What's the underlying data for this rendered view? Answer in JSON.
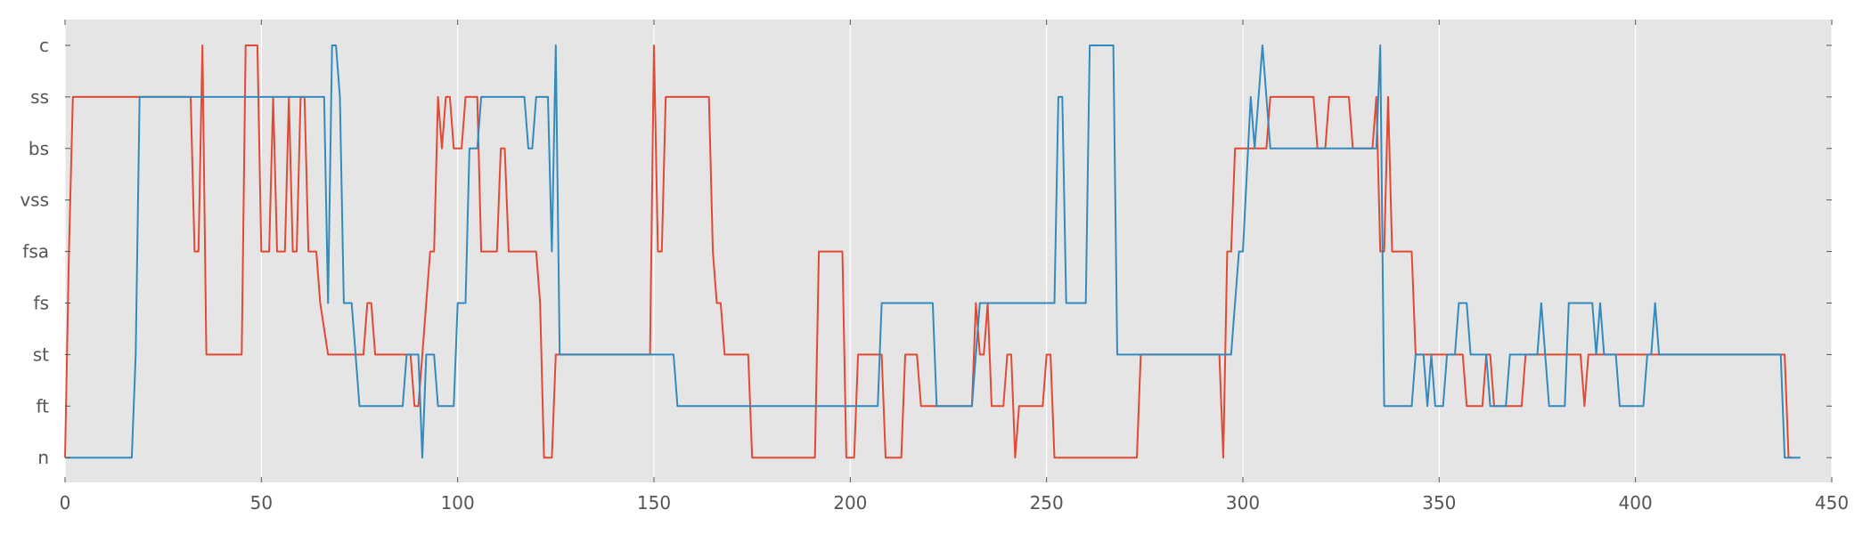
{
  "chart_data": {
    "type": "line",
    "title": "",
    "xlabel": "",
    "ylabel": "",
    "xlim": [
      0,
      450
    ],
    "x_ticks": [
      0,
      50,
      100,
      150,
      200,
      250,
      300,
      350,
      400,
      450
    ],
    "x_tick_labels": [
      "0",
      "50",
      "100",
      "150",
      "200",
      "250",
      "300",
      "350",
      "400",
      "450"
    ],
    "y_categories": [
      "n",
      "ft",
      "st",
      "fs",
      "fsa",
      "vss",
      "bs",
      "ss",
      "c"
    ],
    "grid": true,
    "legend": "none",
    "colors": {
      "background": "#e5e5e5",
      "grid": "#ffffff",
      "series_red": "#e24a33",
      "series_blue": "#348abd",
      "tick_text": "#555555"
    },
    "series": [
      {
        "color": "#e24a33",
        "points": [
          [
            0,
            0
          ],
          [
            1,
            4
          ],
          [
            2,
            7
          ],
          [
            32,
            7
          ],
          [
            33,
            4
          ],
          [
            34,
            4
          ],
          [
            35,
            8
          ],
          [
            36,
            2
          ],
          [
            45,
            2
          ],
          [
            46,
            8
          ],
          [
            49,
            8
          ],
          [
            50,
            4
          ],
          [
            52,
            4
          ],
          [
            53,
            7
          ],
          [
            54,
            4
          ],
          [
            56,
            4
          ],
          [
            57,
            7
          ],
          [
            58,
            4
          ],
          [
            59,
            4
          ],
          [
            60,
            7
          ],
          [
            61,
            7
          ],
          [
            62,
            4
          ],
          [
            64,
            4
          ],
          [
            65,
            3
          ],
          [
            67,
            2
          ],
          [
            76,
            2
          ],
          [
            77,
            3
          ],
          [
            78,
            3
          ],
          [
            79,
            2
          ],
          [
            88,
            2
          ],
          [
            89,
            1
          ],
          [
            90,
            1
          ],
          [
            91,
            2
          ],
          [
            92,
            3
          ],
          [
            93,
            4
          ],
          [
            94,
            4
          ],
          [
            95,
            7
          ],
          [
            96,
            6
          ],
          [
            97,
            7
          ],
          [
            98,
            7
          ],
          [
            99,
            6
          ],
          [
            101,
            6
          ],
          [
            102,
            7
          ],
          [
            105,
            7
          ],
          [
            106,
            4
          ],
          [
            110,
            4
          ],
          [
            111,
            6
          ],
          [
            112,
            6
          ],
          [
            113,
            4
          ],
          [
            120,
            4
          ],
          [
            121,
            3
          ],
          [
            122,
            0
          ],
          [
            124,
            0
          ],
          [
            125,
            2
          ],
          [
            149,
            2
          ],
          [
            150,
            8
          ],
          [
            151,
            4
          ],
          [
            152,
            4
          ],
          [
            153,
            7
          ],
          [
            164,
            7
          ],
          [
            165,
            4
          ],
          [
            166,
            3
          ],
          [
            167,
            3
          ],
          [
            168,
            2
          ],
          [
            174,
            2
          ],
          [
            175,
            0
          ],
          [
            191,
            0
          ],
          [
            192,
            4
          ],
          [
            198,
            4
          ],
          [
            199,
            0
          ],
          [
            201,
            0
          ],
          [
            202,
            2
          ],
          [
            208,
            2
          ],
          [
            209,
            0
          ],
          [
            213,
            0
          ],
          [
            214,
            2
          ],
          [
            217,
            2
          ],
          [
            218,
            1
          ],
          [
            231,
            1
          ],
          [
            232,
            3
          ],
          [
            233,
            2
          ],
          [
            234,
            2
          ],
          [
            235,
            3
          ],
          [
            236,
            1
          ],
          [
            239,
            1
          ],
          [
            240,
            2
          ],
          [
            241,
            2
          ],
          [
            242,
            0
          ],
          [
            243,
            1
          ],
          [
            249,
            1
          ],
          [
            250,
            2
          ],
          [
            251,
            2
          ],
          [
            252,
            0
          ],
          [
            273,
            0
          ],
          [
            274,
            2
          ],
          [
            294,
            2
          ],
          [
            295,
            0
          ],
          [
            296,
            4
          ],
          [
            297,
            4
          ],
          [
            298,
            6
          ],
          [
            306,
            6
          ],
          [
            307,
            7
          ],
          [
            318,
            7
          ],
          [
            319,
            6
          ],
          [
            321,
            6
          ],
          [
            322,
            7
          ],
          [
            327,
            7
          ],
          [
            328,
            6
          ],
          [
            333,
            6
          ],
          [
            334,
            7
          ],
          [
            335,
            4
          ],
          [
            336,
            4
          ],
          [
            337,
            7
          ],
          [
            338,
            4
          ],
          [
            343,
            4
          ],
          [
            344,
            2
          ],
          [
            356,
            2
          ],
          [
            357,
            1
          ],
          [
            361,
            1
          ],
          [
            362,
            2
          ],
          [
            363,
            2
          ],
          [
            364,
            1
          ],
          [
            371,
            1
          ],
          [
            372,
            2
          ],
          [
            386,
            2
          ],
          [
            387,
            1
          ],
          [
            388,
            2
          ],
          [
            438,
            2
          ],
          [
            439,
            0
          ],
          [
            440,
            0
          ]
        ]
      },
      {
        "color": "#348abd",
        "points": [
          [
            0,
            0
          ],
          [
            17,
            0
          ],
          [
            18,
            2
          ],
          [
            19,
            7
          ],
          [
            66,
            7
          ],
          [
            67,
            3
          ],
          [
            68,
            8
          ],
          [
            69,
            8
          ],
          [
            70,
            7
          ],
          [
            71,
            3
          ],
          [
            73,
            3
          ],
          [
            75,
            1
          ],
          [
            86,
            1
          ],
          [
            87,
            2
          ],
          [
            90,
            2
          ],
          [
            91,
            0
          ],
          [
            92,
            2
          ],
          [
            94,
            2
          ],
          [
            95,
            1
          ],
          [
            99,
            1
          ],
          [
            100,
            3
          ],
          [
            102,
            3
          ],
          [
            103,
            6
          ],
          [
            105,
            6
          ],
          [
            106,
            7
          ],
          [
            117,
            7
          ],
          [
            118,
            6
          ],
          [
            119,
            6
          ],
          [
            120,
            7
          ],
          [
            123,
            7
          ],
          [
            124,
            4
          ],
          [
            125,
            8
          ],
          [
            126,
            2
          ],
          [
            155,
            2
          ],
          [
            156,
            1
          ],
          [
            207,
            1
          ],
          [
            208,
            3
          ],
          [
            221,
            3
          ],
          [
            222,
            1
          ],
          [
            231,
            1
          ],
          [
            232,
            2
          ],
          [
            233,
            3
          ],
          [
            252,
            3
          ],
          [
            253,
            7
          ],
          [
            254,
            7
          ],
          [
            255,
            3
          ],
          [
            260,
            3
          ],
          [
            261,
            8
          ],
          [
            267,
            8
          ],
          [
            268,
            2
          ],
          [
            297,
            2
          ],
          [
            299,
            4
          ],
          [
            300,
            4
          ],
          [
            302,
            7
          ],
          [
            303,
            6
          ],
          [
            305,
            8
          ],
          [
            307,
            6
          ],
          [
            334,
            6
          ],
          [
            335,
            8
          ],
          [
            336,
            1
          ],
          [
            343,
            1
          ],
          [
            344,
            2
          ],
          [
            346,
            2
          ],
          [
            347,
            1
          ],
          [
            348,
            2
          ],
          [
            349,
            1
          ],
          [
            351,
            1
          ],
          [
            352,
            2
          ],
          [
            354,
            2
          ],
          [
            355,
            3
          ],
          [
            357,
            3
          ],
          [
            358,
            2
          ],
          [
            362,
            2
          ],
          [
            363,
            1
          ],
          [
            367,
            1
          ],
          [
            368,
            2
          ],
          [
            375,
            2
          ],
          [
            376,
            3
          ],
          [
            377,
            2
          ],
          [
            378,
            1
          ],
          [
            382,
            1
          ],
          [
            383,
            3
          ],
          [
            389,
            3
          ],
          [
            390,
            2
          ],
          [
            391,
            3
          ],
          [
            392,
            2
          ],
          [
            395,
            2
          ],
          [
            396,
            1
          ],
          [
            402,
            1
          ],
          [
            403,
            2
          ],
          [
            404,
            2
          ],
          [
            405,
            3
          ],
          [
            406,
            2
          ],
          [
            437,
            2
          ],
          [
            438,
            0
          ],
          [
            442,
            0
          ]
        ]
      }
    ]
  }
}
